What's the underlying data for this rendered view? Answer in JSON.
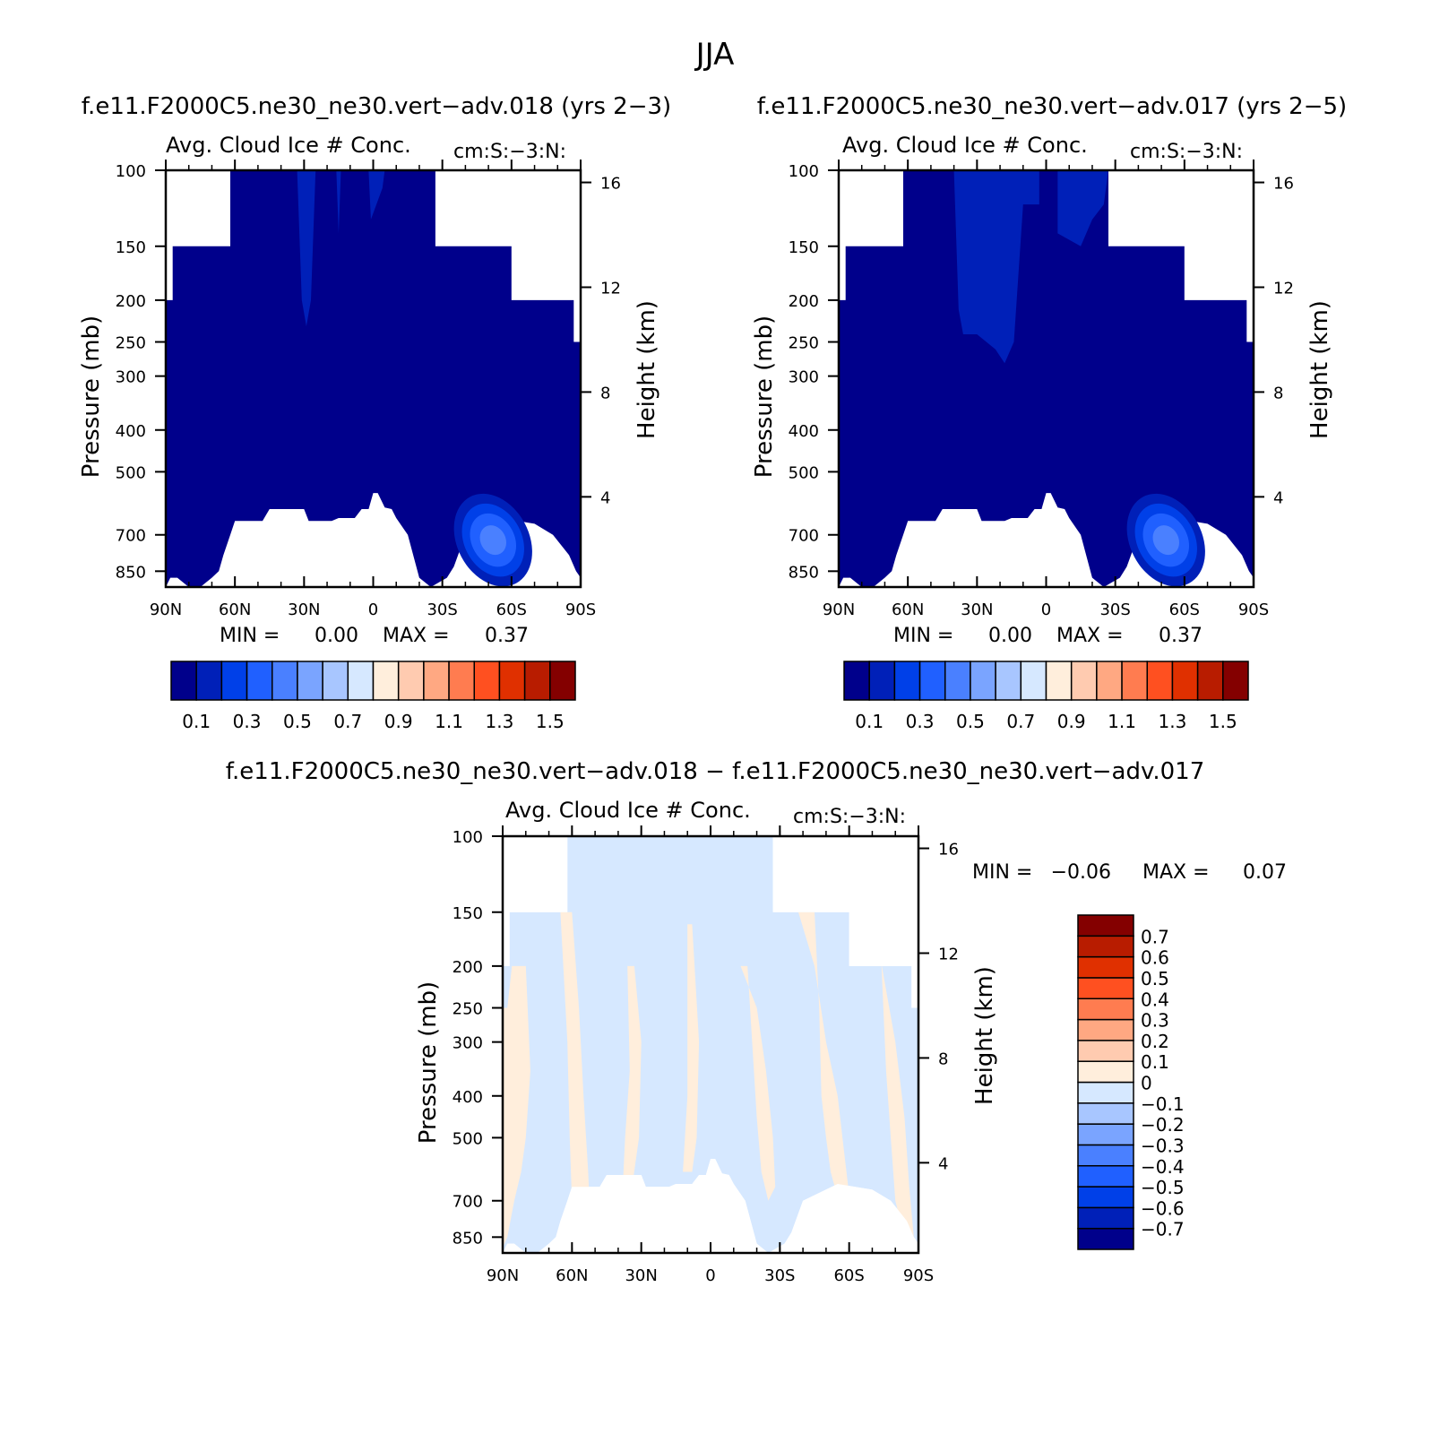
{
  "figure": {
    "title": "JJA"
  },
  "chart_data": [
    {
      "type": "heatmap",
      "case": "f.e11.F2000C5.ne30_ne30.vert-adv.018 (yrs 2-3)",
      "title": "f.e11.F2000C5.ne30_ne30.vert−adv.018 (yrs 2−3)",
      "variable": "Avg. Cloud Ice # Conc.",
      "units": "cm:S:−3:N:",
      "xlabel": "",
      "ylabel": "Pressure (mb)",
      "ylabel_right": "Height (km)",
      "x_ticks": [
        "90N",
        "60N",
        "30N",
        "0",
        "30S",
        "60S",
        "90S"
      ],
      "y_ticks": [
        100,
        150,
        200,
        250,
        300,
        400,
        500,
        700,
        850
      ],
      "height_ticks": [
        16,
        12,
        8,
        4
      ],
      "ylim": [
        100,
        925
      ],
      "min_label": "MIN =",
      "min_value": "0.00",
      "max_label": "MAX =",
      "max_value": "0.37",
      "colorbar": {
        "colors": [
          "#00008b",
          "#0020b8",
          "#0040e8",
          "#2060ff",
          "#4a80ff",
          "#7aa4ff",
          "#a8c6ff",
          "#d6e8ff",
          "#ffeedc",
          "#ffcbb0",
          "#ffa882",
          "#ff7c50",
          "#ff5020",
          "#e03000",
          "#b81c00",
          "#840000"
        ],
        "labels": [
          "0.1",
          "0.3",
          "0.5",
          "0.7",
          "0.9",
          "1.1",
          "1.3",
          "1.5"
        ]
      },
      "max_location": {
        "lat_label": "~48S",
        "pressure": 720,
        "value": 0.37
      }
    },
    {
      "type": "heatmap",
      "case": "f.e11.F2000C5.ne30_ne30.vert-adv.017 (yrs 2-5)",
      "title": "f.e11.F2000C5.ne30_ne30.vert−adv.017 (yrs 2−5)",
      "variable": "Avg. Cloud Ice # Conc.",
      "units": "cm:S:−3:N:",
      "xlabel": "",
      "ylabel": "Pressure (mb)",
      "ylabel_right": "Height (km)",
      "x_ticks": [
        "90N",
        "60N",
        "30N",
        "0",
        "30S",
        "60S",
        "90S"
      ],
      "y_ticks": [
        100,
        150,
        200,
        250,
        300,
        400,
        500,
        700,
        850
      ],
      "height_ticks": [
        16,
        12,
        8,
        4
      ],
      "ylim": [
        100,
        925
      ],
      "min_label": "MIN =",
      "min_value": "0.00",
      "max_label": "MAX =",
      "max_value": "0.37",
      "colorbar": {
        "colors": [
          "#00008b",
          "#0020b8",
          "#0040e8",
          "#2060ff",
          "#4a80ff",
          "#7aa4ff",
          "#a8c6ff",
          "#d6e8ff",
          "#ffeedc",
          "#ffcbb0",
          "#ffa882",
          "#ff7c50",
          "#ff5020",
          "#e03000",
          "#b81c00",
          "#840000"
        ],
        "labels": [
          "0.1",
          "0.3",
          "0.5",
          "0.7",
          "0.9",
          "1.1",
          "1.3",
          "1.5"
        ]
      },
      "max_location": {
        "lat_label": "~48S",
        "pressure": 720,
        "value": 0.37
      }
    },
    {
      "type": "heatmap",
      "case": "difference",
      "title": "f.e11.F2000C5.ne30_ne30.vert−adv.018 − f.e11.F2000C5.ne30_ne30.vert−adv.017",
      "variable": "Avg. Cloud Ice # Conc.",
      "units": "cm:S:−3:N:",
      "xlabel": "",
      "ylabel": "Pressure (mb)",
      "ylabel_right": "Height (km)",
      "x_ticks": [
        "90N",
        "60N",
        "30N",
        "0",
        "30S",
        "60S",
        "90S"
      ],
      "y_ticks": [
        100,
        150,
        200,
        250,
        300,
        400,
        500,
        700,
        850
      ],
      "height_ticks": [
        16,
        12,
        8,
        4
      ],
      "ylim": [
        100,
        925
      ],
      "min_label": "MIN =",
      "min_value": "−0.06",
      "max_label": "MAX =",
      "max_value": "0.07",
      "colorbar": {
        "colors": [
          "#00008b",
          "#0020b8",
          "#0040e8",
          "#2060ff",
          "#4a80ff",
          "#7aa4ff",
          "#a8c6ff",
          "#d6e8ff",
          "#ffeedc",
          "#ffcbb0",
          "#ffa882",
          "#ff7c50",
          "#ff5020",
          "#e03000",
          "#b81c00",
          "#840000"
        ],
        "labels": [
          "−0.7",
          "−0.6",
          "−0.5",
          "−0.4",
          "−0.3",
          "−0.2",
          "−0.1",
          "0",
          "0.1",
          "0.2",
          "0.3",
          "0.4",
          "0.5",
          "0.6",
          "0.7"
        ]
      },
      "fields": {
        "negative_fill": "#d6e8ff",
        "positive_fill": "#ffeedc",
        "positive_bands_lat": [
          "~75N",
          "~55N",
          "~30N",
          "~10S",
          "~35S",
          "~55S",
          "~78S"
        ]
      }
    }
  ]
}
